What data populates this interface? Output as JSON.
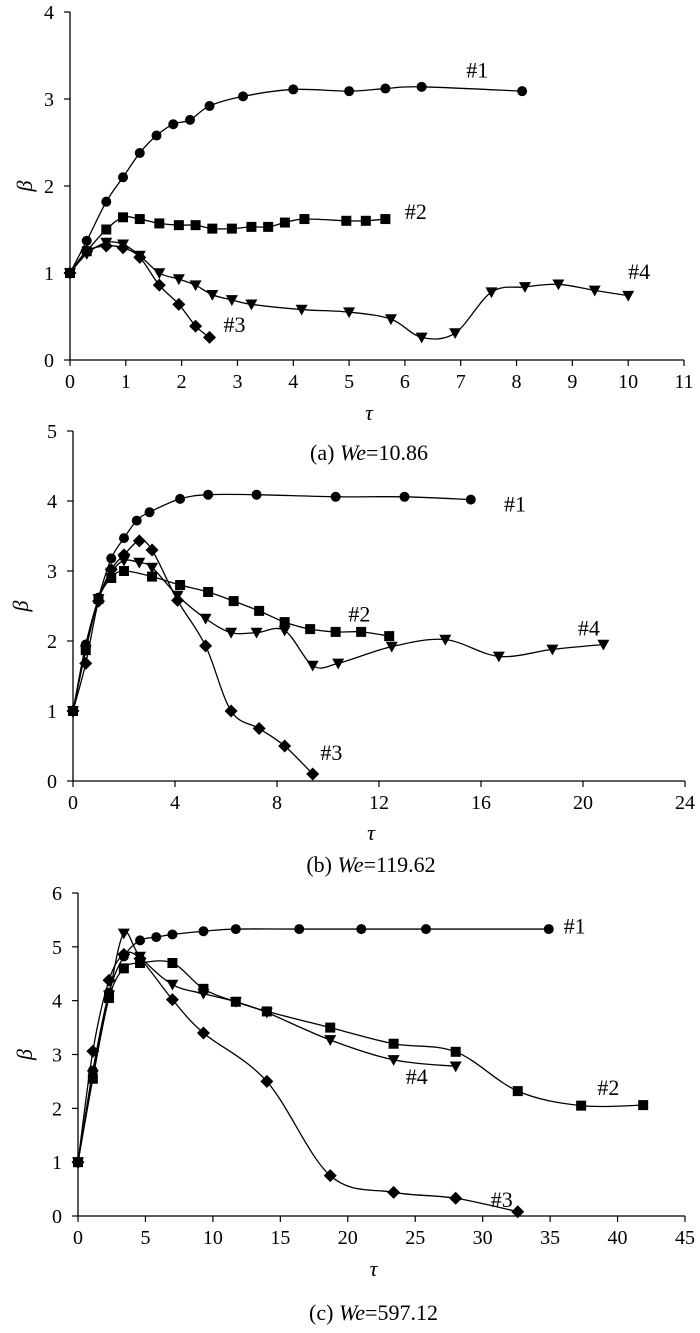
{
  "chart_data": [
    {
      "type": "line",
      "caption": {
        "prefix": "(a) ",
        "var": "We",
        "rest": "=10.86"
      },
      "xlabel": "τ",
      "ylabel": "β",
      "xlim": [
        0,
        11
      ],
      "ylim": [
        0,
        4
      ],
      "xticks": [
        0,
        1,
        2,
        3,
        4,
        5,
        6,
        7,
        8,
        9,
        10,
        11
      ],
      "yticks": [
        0,
        1,
        2,
        3,
        4
      ],
      "grid": false,
      "series": [
        {
          "name": "#1",
          "marker": "circle",
          "x": [
            0,
            0.3,
            0.65,
            0.95,
            1.25,
            1.55,
            1.85,
            2.15,
            2.5,
            3.1,
            4.0,
            5.0,
            5.65,
            6.3,
            8.1
          ],
          "y": [
            1.0,
            1.37,
            1.82,
            2.1,
            2.38,
            2.58,
            2.71,
            2.76,
            2.92,
            3.03,
            3.11,
            3.09,
            3.12,
            3.14,
            3.09
          ]
        },
        {
          "name": "#2",
          "marker": "square",
          "x": [
            0,
            0.3,
            0.65,
            0.95,
            1.25,
            1.6,
            1.95,
            2.25,
            2.55,
            2.9,
            3.25,
            3.55,
            3.85,
            4.2,
            4.95,
            5.3,
            5.65
          ],
          "y": [
            1.0,
            1.25,
            1.5,
            1.64,
            1.62,
            1.57,
            1.55,
            1.55,
            1.51,
            1.51,
            1.53,
            1.53,
            1.58,
            1.62,
            1.6,
            1.6,
            1.62
          ]
        },
        {
          "name": "#3",
          "marker": "diamond",
          "x": [
            0,
            0.3,
            0.65,
            0.95,
            1.25,
            1.6,
            1.95,
            2.25,
            2.5
          ],
          "y": [
            1.0,
            1.25,
            1.31,
            1.29,
            1.18,
            0.86,
            0.64,
            0.39,
            0.26
          ]
        },
        {
          "name": "#4",
          "marker": "triangle-down",
          "x": [
            0,
            0.3,
            0.65,
            0.95,
            1.25,
            1.6,
            1.95,
            2.25,
            2.55,
            2.9,
            3.25,
            4.15,
            5.0,
            5.75,
            6.3,
            6.9,
            7.55,
            8.15,
            8.75,
            9.4,
            10.0
          ],
          "y": [
            1.0,
            1.22,
            1.35,
            1.33,
            1.2,
            1.0,
            0.93,
            0.86,
            0.75,
            0.69,
            0.64,
            0.58,
            0.55,
            0.47,
            0.26,
            0.31,
            0.78,
            0.84,
            0.87,
            0.8,
            0.74
          ]
        }
      ],
      "annotations": [
        {
          "text": "#1",
          "x": 7.1,
          "y": 3.25
        },
        {
          "text": "#2",
          "x": 6.0,
          "y": 1.62
        },
        {
          "text": "#3",
          "x": 2.75,
          "y": 0.32
        },
        {
          "text": "#4",
          "x": 10.0,
          "y": 0.93
        }
      ]
    },
    {
      "type": "line",
      "caption": {
        "prefix": "(b) ",
        "var": "We",
        "rest": "=119.62"
      },
      "xlabel": "τ",
      "ylabel": "β",
      "xlim": [
        0,
        24
      ],
      "ylim": [
        0,
        5
      ],
      "xticks": [
        0,
        4,
        8,
        12,
        16,
        20,
        24
      ],
      "yticks": [
        0,
        1,
        2,
        3,
        4,
        5
      ],
      "grid": false,
      "series": [
        {
          "name": "#1",
          "marker": "circle",
          "x": [
            0,
            0.5,
            1.0,
            1.5,
            2.0,
            2.5,
            3.0,
            4.2,
            5.3,
            7.2,
            10.3,
            13.0,
            15.6
          ],
          "y": [
            1.0,
            1.95,
            2.62,
            3.18,
            3.47,
            3.72,
            3.84,
            4.03,
            4.09,
            4.09,
            4.06,
            4.06,
            4.02
          ]
        },
        {
          "name": "#2",
          "marker": "square",
          "x": [
            0,
            0.5,
            1.0,
            1.5,
            2.0,
            3.1,
            4.2,
            5.3,
            6.3,
            7.3,
            8.3,
            9.3,
            10.3,
            11.3,
            12.4
          ],
          "y": [
            1.0,
            1.87,
            2.6,
            2.9,
            3.0,
            2.92,
            2.8,
            2.7,
            2.57,
            2.43,
            2.27,
            2.17,
            2.13,
            2.13,
            2.07
          ]
        },
        {
          "name": "#3",
          "marker": "diamond",
          "x": [
            0,
            0.5,
            1.0,
            1.5,
            2.0,
            2.6,
            3.1,
            4.1,
            5.2,
            6.2,
            7.3,
            8.3,
            9.4
          ],
          "y": [
            1.0,
            1.68,
            2.57,
            3.02,
            3.23,
            3.43,
            3.3,
            2.58,
            1.93,
            1.0,
            0.75,
            0.5,
            0.1
          ]
        },
        {
          "name": "#4",
          "marker": "triangle-down",
          "x": [
            0,
            0.5,
            1.0,
            1.5,
            2.0,
            2.6,
            3.1,
            4.1,
            5.2,
            6.2,
            7.2,
            8.3,
            9.4,
            10.4,
            12.5,
            14.6,
            16.7,
            18.8,
            20.8
          ],
          "y": [
            1.0,
            1.87,
            2.6,
            2.98,
            3.15,
            3.12,
            3.05,
            2.65,
            2.32,
            2.12,
            2.12,
            2.15,
            1.65,
            1.68,
            1.92,
            2.02,
            1.78,
            1.88,
            1.95
          ]
        }
      ],
      "annotations": [
        {
          "text": "#1",
          "x": 16.9,
          "y": 3.85
        },
        {
          "text": "#2",
          "x": 10.8,
          "y": 2.28
        },
        {
          "text": "#3",
          "x": 9.7,
          "y": 0.3
        },
        {
          "text": "#4",
          "x": 19.8,
          "y": 2.08
        }
      ]
    },
    {
      "type": "line",
      "caption": {
        "prefix": "(c) ",
        "var": "We",
        "rest": "=597.12"
      },
      "xlabel": "τ",
      "ylabel": "β",
      "xlim": [
        0,
        45
      ],
      "ylim": [
        0,
        6
      ],
      "xticks": [
        0,
        5,
        10,
        15,
        20,
        25,
        30,
        35,
        40,
        45
      ],
      "yticks": [
        0,
        1,
        2,
        3,
        4,
        5,
        6
      ],
      "grid": false,
      "series": [
        {
          "name": "#1",
          "marker": "circle",
          "x": [
            0,
            1.1,
            2.3,
            3.4,
            4.6,
            5.8,
            7.0,
            9.3,
            11.7,
            16.4,
            21.0,
            25.8,
            34.9
          ],
          "y": [
            1.0,
            2.7,
            4.15,
            4.82,
            5.12,
            5.18,
            5.23,
            5.29,
            5.33,
            5.33,
            5.33,
            5.33,
            5.33
          ]
        },
        {
          "name": "#2",
          "marker": "square",
          "x": [
            0,
            1.1,
            2.3,
            3.4,
            4.6,
            7.0,
            9.3,
            11.7,
            14.0,
            18.7,
            23.4,
            28.0,
            32.6,
            37.3,
            41.9
          ],
          "y": [
            1.0,
            2.55,
            4.05,
            4.6,
            4.7,
            4.7,
            4.22,
            3.98,
            3.8,
            3.5,
            3.2,
            3.05,
            2.32,
            2.05,
            2.06
          ]
        },
        {
          "name": "#3",
          "marker": "diamond",
          "x": [
            0,
            1.1,
            2.3,
            3.4,
            4.6,
            7.0,
            9.3,
            14.0,
            18.7,
            23.4,
            28.0,
            32.6
          ],
          "y": [
            1.0,
            3.06,
            4.38,
            4.86,
            4.78,
            4.02,
            3.4,
            2.5,
            0.75,
            0.44,
            0.33,
            0.08
          ]
        },
        {
          "name": "#4",
          "marker": "triangle-down",
          "x": [
            0,
            1.1,
            2.3,
            3.4,
            4.6,
            7.0,
            9.3,
            11.7,
            14.0,
            18.7,
            23.4,
            28.0
          ],
          "y": [
            1.0,
            2.62,
            4.1,
            5.25,
            4.82,
            4.3,
            4.13,
            3.98,
            3.78,
            3.27,
            2.9,
            2.78
          ]
        }
      ],
      "annotations": [
        {
          "text": "#1",
          "x": 36.0,
          "y": 5.25
        },
        {
          "text": "#2",
          "x": 38.5,
          "y": 2.25
        },
        {
          "text": "#3",
          "x": 30.6,
          "y": 0.17
        },
        {
          "text": "#4",
          "x": 24.3,
          "y": 2.45
        }
      ]
    }
  ]
}
